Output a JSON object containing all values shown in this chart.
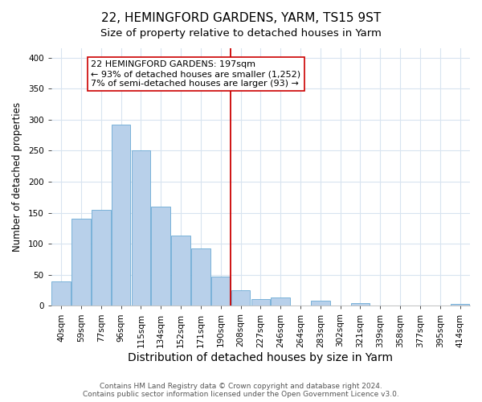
{
  "title": "22, HEMINGFORD GARDENS, YARM, TS15 9ST",
  "subtitle": "Size of property relative to detached houses in Yarm",
  "xlabel": "Distribution of detached houses by size in Yarm",
  "ylabel": "Number of detached properties",
  "bar_labels": [
    "40sqm",
    "59sqm",
    "77sqm",
    "96sqm",
    "115sqm",
    "134sqm",
    "152sqm",
    "171sqm",
    "190sqm",
    "208sqm",
    "227sqm",
    "246sqm",
    "264sqm",
    "283sqm",
    "302sqm",
    "321sqm",
    "339sqm",
    "358sqm",
    "377sqm",
    "395sqm",
    "414sqm"
  ],
  "bar_heights": [
    40,
    140,
    155,
    292,
    250,
    160,
    113,
    92,
    47,
    25,
    11,
    13,
    0,
    8,
    0,
    5,
    0,
    0,
    0,
    0,
    3
  ],
  "bar_color": "#b8d0ea",
  "bar_edge_color": "#6aaad4",
  "vline_x": 8.5,
  "vline_color": "#cc0000",
  "annotation_text": "22 HEMINGFORD GARDENS: 197sqm\n← 93% of detached houses are smaller (1,252)\n7% of semi-detached houses are larger (93) →",
  "annotation_box_color": "#ffffff",
  "annotation_box_edge": "#cc0000",
  "ylim": [
    0,
    415
  ],
  "yticks": [
    0,
    50,
    100,
    150,
    200,
    250,
    300,
    350,
    400
  ],
  "footer": "Contains HM Land Registry data © Crown copyright and database right 2024.\nContains public sector information licensed under the Open Government Licence v3.0.",
  "title_fontsize": 11,
  "subtitle_fontsize": 9.5,
  "xlabel_fontsize": 10,
  "ylabel_fontsize": 8.5,
  "tick_fontsize": 7.5,
  "annotation_fontsize": 8,
  "footer_fontsize": 6.5,
  "bg_color": "#ffffff",
  "plot_bg_color": "#ffffff",
  "grid_color": "#d8e4f0"
}
